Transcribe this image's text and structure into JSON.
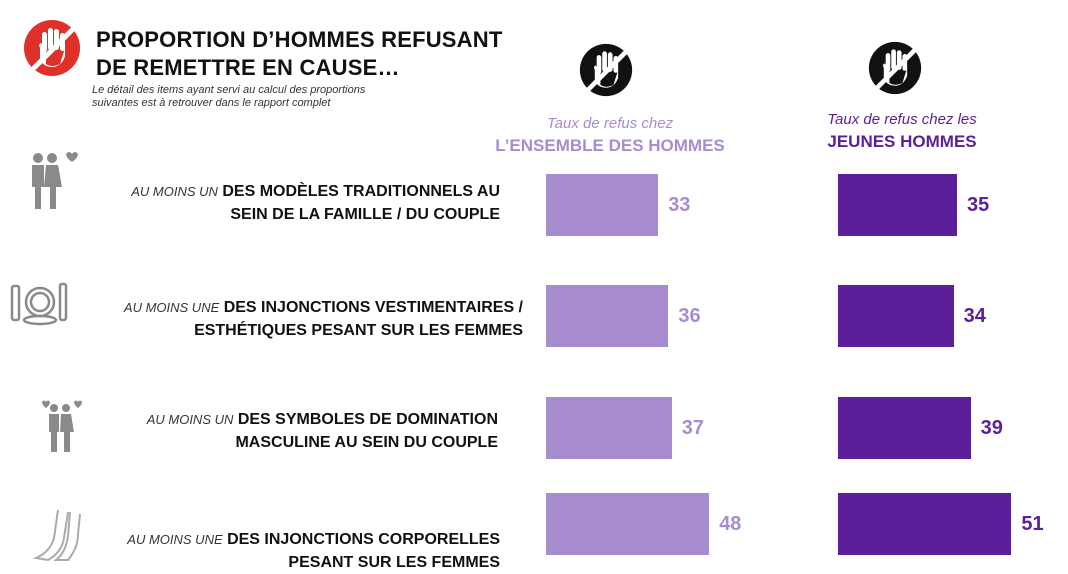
{
  "header": {
    "title_line1": "PROPORTION D’HOMMES REFUSANT",
    "title_line2": "DE REMETTRE EN CAUSE…",
    "subtitle_line1": "Le détail des items ayant servi au calcul des proportions",
    "subtitle_line2": "suivantes est à retrouver dans le rapport complet",
    "title_icon": "hand-stop-icon"
  },
  "colors": {
    "all_men": "#a78ccf",
    "young_men": "#5b1f9a",
    "accent_red": "#e0302a"
  },
  "chart_data": {
    "type": "bar",
    "orientation": "horizontal",
    "categories": [
      {
        "prefix": "AU MOINS UN",
        "label_line1": "DES MODÈLES TRADITIONNELS AU",
        "label_line2": "SEIN DE LA FAMILLE / DU COUPLE",
        "icon": "couple-kiss-icon"
      },
      {
        "prefix": "AU MOINS UNE",
        "label_line1": "DES INJONCTIONS VESTIMENTAIRES /",
        "label_line2": "ESTHÉTIQUES PESANT SUR LES FEMMES",
        "icon": "makeup-icon"
      },
      {
        "prefix": "AU MOINS UN",
        "label_line1": "DES SYMBOLES DE DOMINATION",
        "label_line2": "MASCULINE AU SEIN DU COUPLE",
        "icon": "couple-hearts-icon"
      },
      {
        "prefix": "AU MOINS UNE",
        "label_line1": "DES INJONCTIONS CORPORELLES",
        "label_line2": "PESANT SUR LES FEMMES",
        "icon": "legs-icon"
      }
    ],
    "series": [
      {
        "header_sub": "Taux de refus chez",
        "header_main": "L’ENSEMBLE DES HOMMES",
        "color": "#a78ccf",
        "values": [
          33,
          36,
          37,
          48
        ],
        "icon": "hand-stop-icon"
      },
      {
        "header_sub": "Taux de refus chez les",
        "header_main": "JEUNES HOMMES",
        "color": "#5b1f9a",
        "values": [
          35,
          34,
          39,
          51
        ],
        "icon": "hand-stop-icon"
      }
    ],
    "xlim": [
      0,
      100
    ],
    "grid": false,
    "legend": "column-headers"
  }
}
